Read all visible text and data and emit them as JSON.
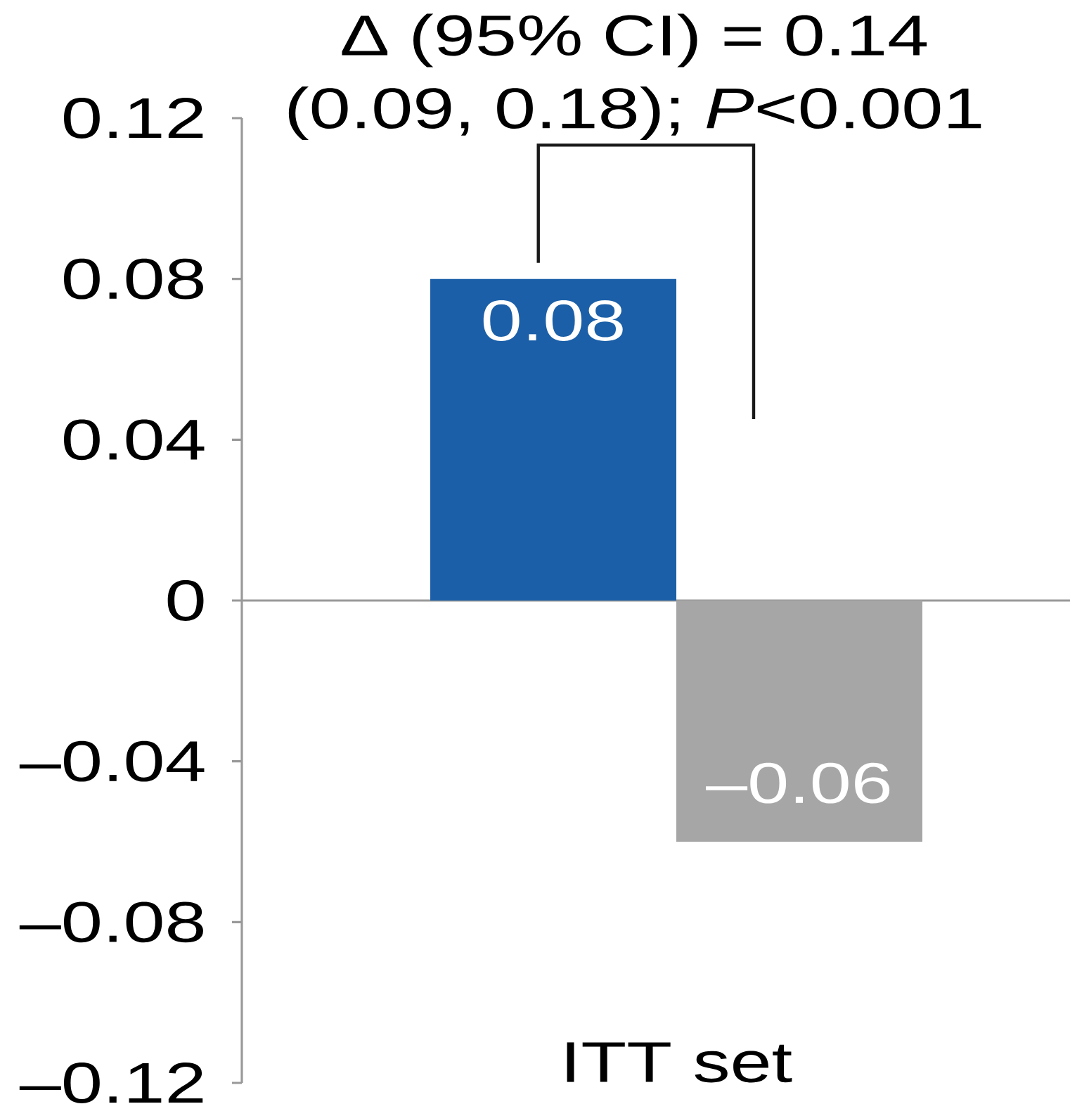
{
  "chart_data": {
    "type": "bar",
    "categories": [
      "ITT set"
    ],
    "series": [
      {
        "color": "#1a5fa8",
        "values": [
          0.08
        ],
        "value_labels": [
          "0.08"
        ]
      },
      {
        "color": "#a6a6a6",
        "values": [
          -0.06
        ],
        "value_labels": [
          "–0.06"
        ]
      }
    ],
    "ylim": [
      -0.12,
      0.12
    ],
    "yticks": [
      {
        "value": -0.12,
        "label": "–0.12"
      },
      {
        "value": -0.08,
        "label": "–0.08"
      },
      {
        "value": -0.04,
        "label": "–0.04"
      },
      0,
      0.04,
      0.08,
      0.12
    ],
    "annotations": [
      "Δ (95% CI) = 0.14 (0.09, 0.18); *P*<0.001"
    ]
  }
}
